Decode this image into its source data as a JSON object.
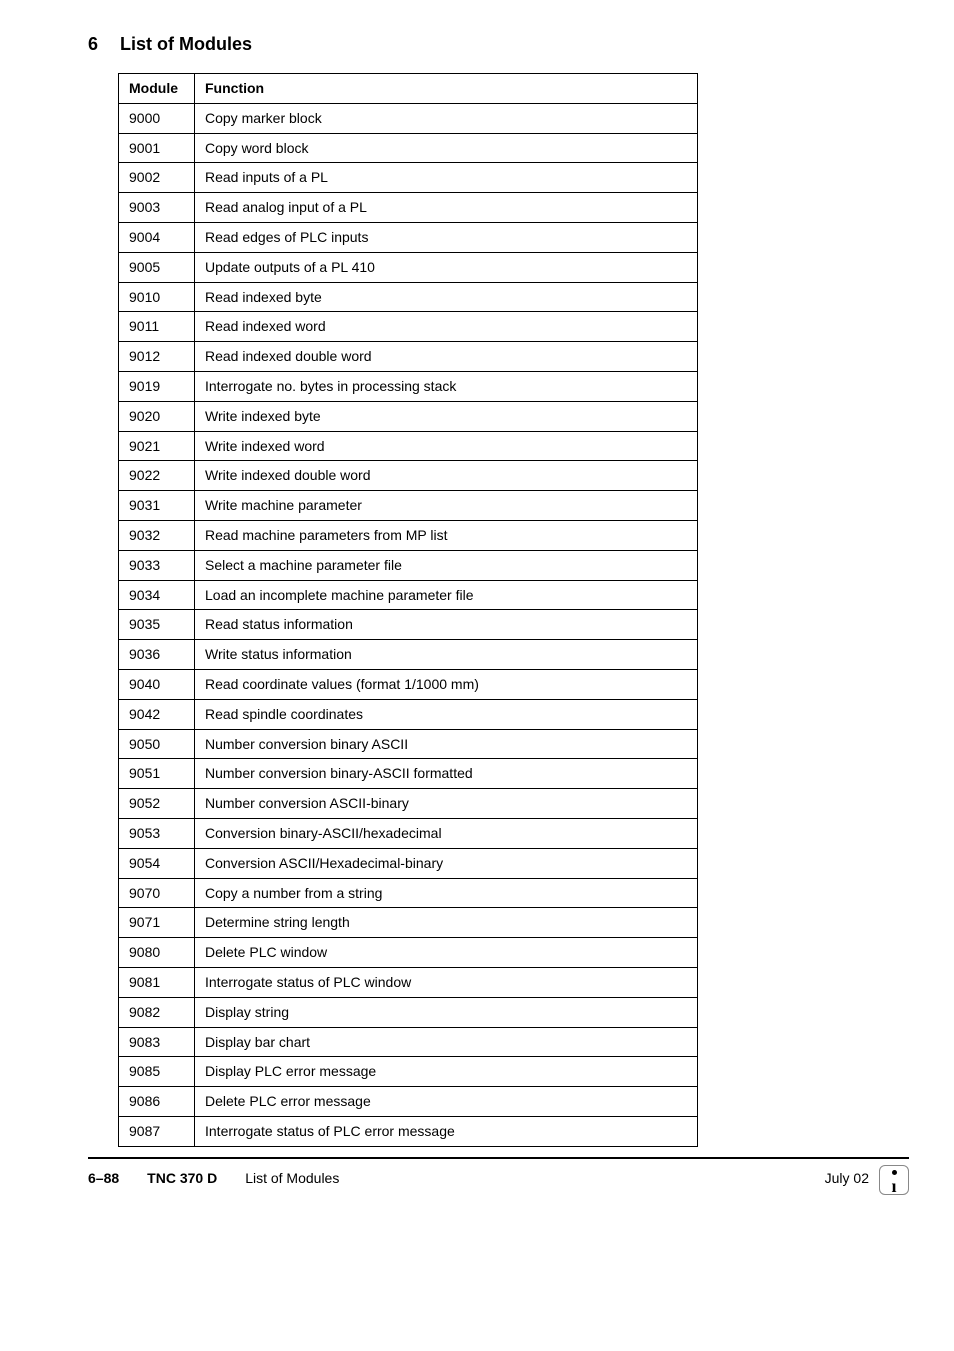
{
  "heading": {
    "number": "6",
    "title": "List of Modules"
  },
  "table": {
    "headers": {
      "module": "Module",
      "function": "Function"
    },
    "rows": [
      {
        "module": "9000",
        "function": "Copy marker block"
      },
      {
        "module": "9001",
        "function": "Copy word block"
      },
      {
        "module": "9002",
        "function": "Read inputs of a PL"
      },
      {
        "module": "9003",
        "function": "Read analog input of a PL"
      },
      {
        "module": "9004",
        "function": "Read edges of PLC inputs"
      },
      {
        "module": "9005",
        "function": "Update outputs of a PL 410"
      },
      {
        "module": "9010",
        "function": "Read indexed byte"
      },
      {
        "module": "9011",
        "function": "Read indexed word"
      },
      {
        "module": "9012",
        "function": "Read indexed double word"
      },
      {
        "module": "9019",
        "function": "Interrogate no. bytes in processing stack"
      },
      {
        "module": "9020",
        "function": "Write indexed byte"
      },
      {
        "module": "9021",
        "function": "Write indexed word"
      },
      {
        "module": "9022",
        "function": "Write indexed double word"
      },
      {
        "module": "9031",
        "function": "Write machine parameter"
      },
      {
        "module": "9032",
        "function": "Read machine parameters from MP list"
      },
      {
        "module": "9033",
        "function": "Select a machine parameter file"
      },
      {
        "module": "9034",
        "function": "Load an incomplete machine parameter file"
      },
      {
        "module": "9035",
        "function": "Read status information"
      },
      {
        "module": "9036",
        "function": "Write status information"
      },
      {
        "module": "9040",
        "function": "Read coordinate values (format 1/1000 mm)"
      },
      {
        "module": "9042",
        "function": "Read spindle coordinates"
      },
      {
        "module": "9050",
        "function": "Number conversion binary ASCII"
      },
      {
        "module": "9051",
        "function": "Number conversion binary-ASCII formatted"
      },
      {
        "module": "9052",
        "function": "Number conversion ASCII-binary"
      },
      {
        "module": "9053",
        "function": "Conversion binary-ASCII/hexadecimal"
      },
      {
        "module": "9054",
        "function": "Conversion ASCII/Hexadecimal-binary"
      },
      {
        "module": "9070",
        "function": "Copy a number from a string"
      },
      {
        "module": "9071",
        "function": "Determine string length"
      },
      {
        "module": "9080",
        "function": "Delete PLC window"
      },
      {
        "module": "9081",
        "function": "Interrogate status of PLC window"
      },
      {
        "module": "9082",
        "function": "Display string"
      },
      {
        "module": "9083",
        "function": "Display bar chart"
      },
      {
        "module": "9085",
        "function": "Display PLC error message"
      },
      {
        "module": "9086",
        "function": "Delete PLC error message"
      },
      {
        "module": "9087",
        "function": "Interrogate status of PLC error message"
      }
    ]
  },
  "footer": {
    "page": "6–88",
    "model": "TNC 370 D",
    "title": "List of Modules",
    "date": "July  02"
  }
}
